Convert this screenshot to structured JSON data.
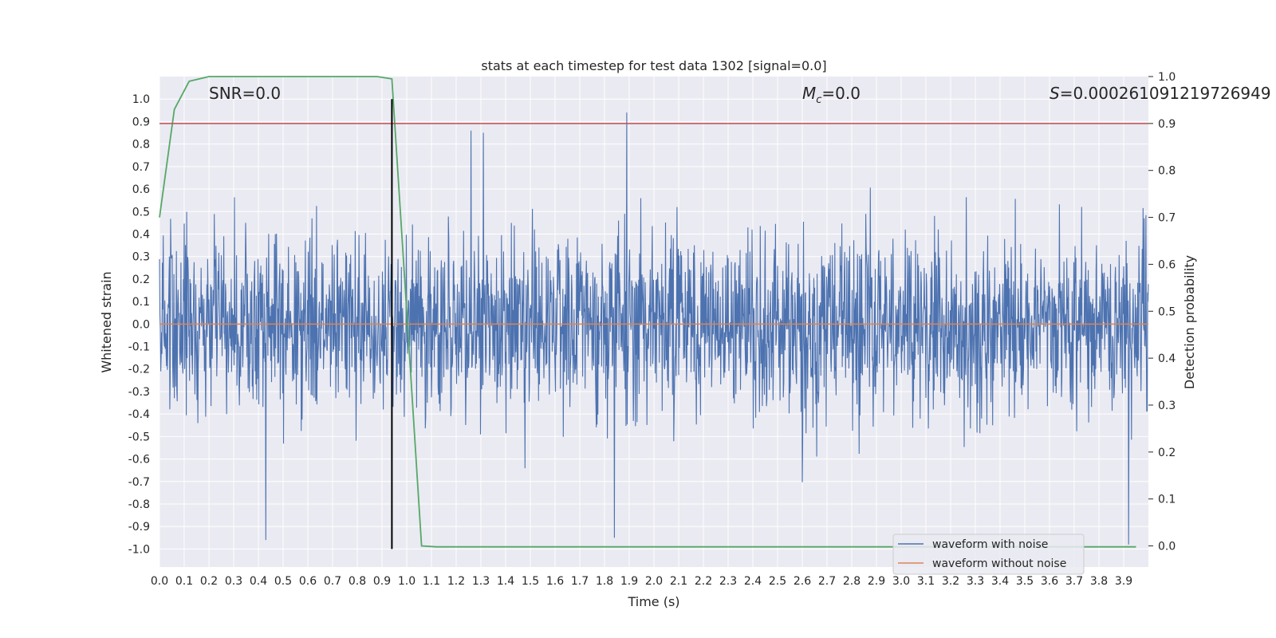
{
  "chart_data": {
    "type": "line",
    "title": "stats at each timestep for test data 1302 [signal=0.0]",
    "xlabel": "Time (s)",
    "ylabel": "Whitened strain",
    "y2label": "Detection probability",
    "xlim": [
      0.0,
      4.0
    ],
    "ylim": [
      -1.08,
      1.1
    ],
    "y2lim": [
      -0.045,
      1.0
    ],
    "xticks": [
      "0.0",
      "0.1",
      "0.2",
      "0.3",
      "0.4",
      "0.5",
      "0.6",
      "0.7",
      "0.8",
      "0.9",
      "1.0",
      "1.1",
      "1.2",
      "1.3",
      "1.4",
      "1.5",
      "1.6",
      "1.7",
      "1.8",
      "1.9",
      "2.0",
      "2.1",
      "2.2",
      "2.3",
      "2.4",
      "2.5",
      "2.6",
      "2.7",
      "2.8",
      "2.9",
      "3.0",
      "3.1",
      "3.2",
      "3.3",
      "3.4",
      "3.5",
      "3.6",
      "3.7",
      "3.8",
      "3.9"
    ],
    "yticks": [
      "1.0",
      "0.9",
      "0.8",
      "0.7",
      "0.6",
      "0.5",
      "0.4",
      "0.3",
      "0.2",
      "0.1",
      "0.0",
      "-0.1",
      "-0.2",
      "-0.3",
      "-0.4",
      "-0.5",
      "-0.6",
      "-0.7",
      "-0.8",
      "-0.9",
      "-1.0"
    ],
    "y2ticks": [
      "1.0",
      "0.9",
      "0.8",
      "0.7",
      "0.6",
      "0.5",
      "0.4",
      "0.3",
      "0.2",
      "0.1",
      "0.0"
    ],
    "annotations": {
      "snr": "SNR=0.0",
      "mc_symbol": "M",
      "mc_sub": "c",
      "mc_value": "=0.0",
      "s_symbol": "S",
      "s_value": "=0.00026109121972694⁠⁠9"
    },
    "threshold": {
      "axis": "right",
      "value": 0.9,
      "color": "#c44e52"
    },
    "peak_marker": {
      "x": 0.94,
      "color": "#000000"
    },
    "series": [
      {
        "name": "waveform with noise",
        "axis": "left",
        "color": "#4c72b0",
        "description": "dense whitened noise, envelope approx +/-0.4, peaks to +0.94 at 1.89 s and -0.96 at 0.43 s"
      },
      {
        "name": "waveform without noise",
        "axis": "left",
        "color": "#dd8452",
        "x": [
          0.0,
          4.0
        ],
        "y": [
          0.0,
          0.0
        ]
      },
      {
        "name": "detection probability",
        "axis": "right",
        "color": "#55a868",
        "x": [
          0.0,
          0.06,
          0.12,
          0.2,
          0.3,
          0.5,
          0.7,
          0.88,
          0.94,
          1.0,
          1.06,
          1.12,
          1.5,
          2.0,
          2.5,
          3.0,
          3.5,
          3.95
        ],
        "y": [
          0.7,
          0.93,
          0.99,
          1.0,
          1.0,
          1.0,
          1.0,
          1.0,
          0.995,
          0.5,
          0.0,
          -0.002,
          -0.002,
          -0.002,
          -0.002,
          -0.002,
          -0.002,
          -0.002
        ]
      }
    ],
    "legend": {
      "position": "lower-right",
      "entries": [
        "waveform with noise",
        "waveform without noise"
      ]
    }
  }
}
